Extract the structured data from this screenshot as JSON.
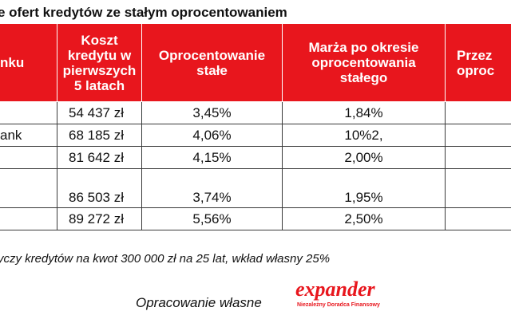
{
  "title": "e ofert kredytów ze stałym oprocentowaniem",
  "table": {
    "headers": [
      [
        "nku"
      ],
      [
        "Koszt",
        "kredytu w",
        "pierwszych",
        "5 latach"
      ],
      [
        "Oprocentowanie",
        "stałe"
      ],
      [
        "Marża po okresie",
        "oprocentowania",
        "stałego"
      ],
      [
        "Przez",
        "oproc"
      ]
    ],
    "rows": [
      {
        "bank": "",
        "cost": "54 437 zł",
        "rate": "3,45%",
        "margin": "1,84%",
        "extra": ""
      },
      {
        "bank": "ank",
        "cost": "68 185 zł",
        "rate": "4,06%",
        "margin": "10%2,",
        "extra": ""
      },
      {
        "bank": "",
        "cost": "81 642 zł",
        "rate": "4,15%",
        "margin": "2,00%",
        "extra": ""
      },
      {
        "bank": "",
        "cost": "86 503 zł",
        "rate": "3,74%",
        "margin": "1,95%",
        "extra": ""
      },
      {
        "bank": "",
        "cost": "89 272 zł",
        "rate": "5,56%",
        "margin": "2,50%",
        "extra": ""
      }
    ]
  },
  "note": "yczy kredytów na kwot 300 000 zł na 25 lat, wkład własny 25%",
  "footer": "Opracowanie własne",
  "logo": {
    "word": "expander",
    "tagline": "Niezależny Doradca Finansowy"
  },
  "colors": {
    "header_bg": "#e8161d",
    "brand": "#e8161d"
  }
}
